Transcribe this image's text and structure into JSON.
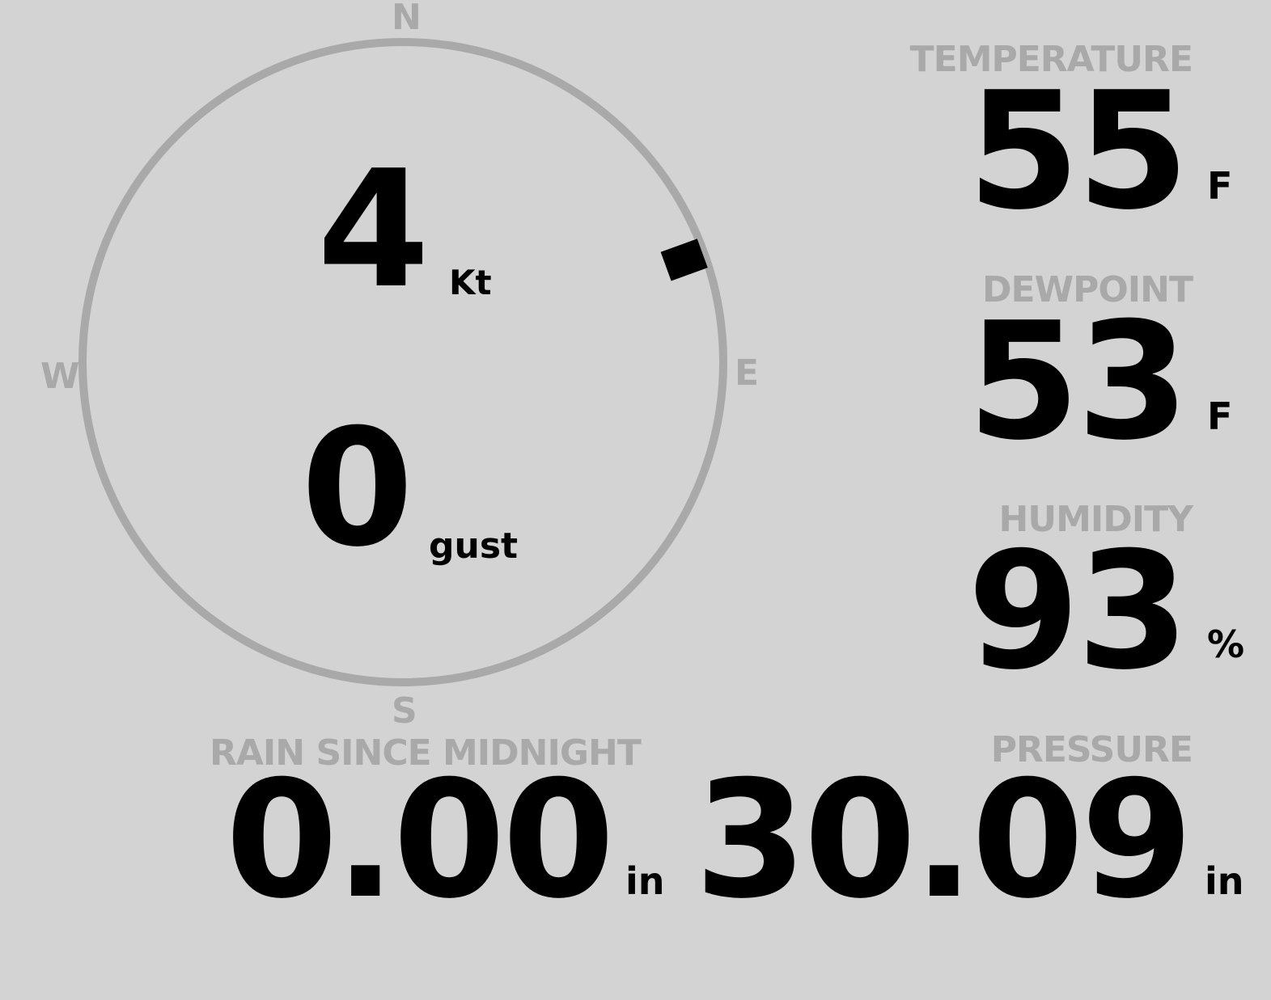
{
  "wind": {
    "compass": {
      "n": "N",
      "e": "E",
      "s": "S",
      "w": "W"
    },
    "direction_deg": 70,
    "speed": "4",
    "speed_unit": "Kt",
    "gust": "0",
    "gust_unit": "gust"
  },
  "temperature": {
    "label": "TEMPERATURE",
    "value": "55",
    "unit": "F"
  },
  "dewpoint": {
    "label": "DEWPOINT",
    "value": "53",
    "unit": "F"
  },
  "humidity": {
    "label": "HUMIDITY",
    "value": "93",
    "unit": "%"
  },
  "rain": {
    "label": "RAIN SINCE MIDNIGHT",
    "value": "0.00",
    "unit": "in"
  },
  "pressure": {
    "label": "PRESSURE",
    "value": "30.09",
    "unit": "in"
  },
  "colors": {
    "background": "#d3d3d3",
    "label": "#a9a9a9",
    "value": "#000000"
  }
}
